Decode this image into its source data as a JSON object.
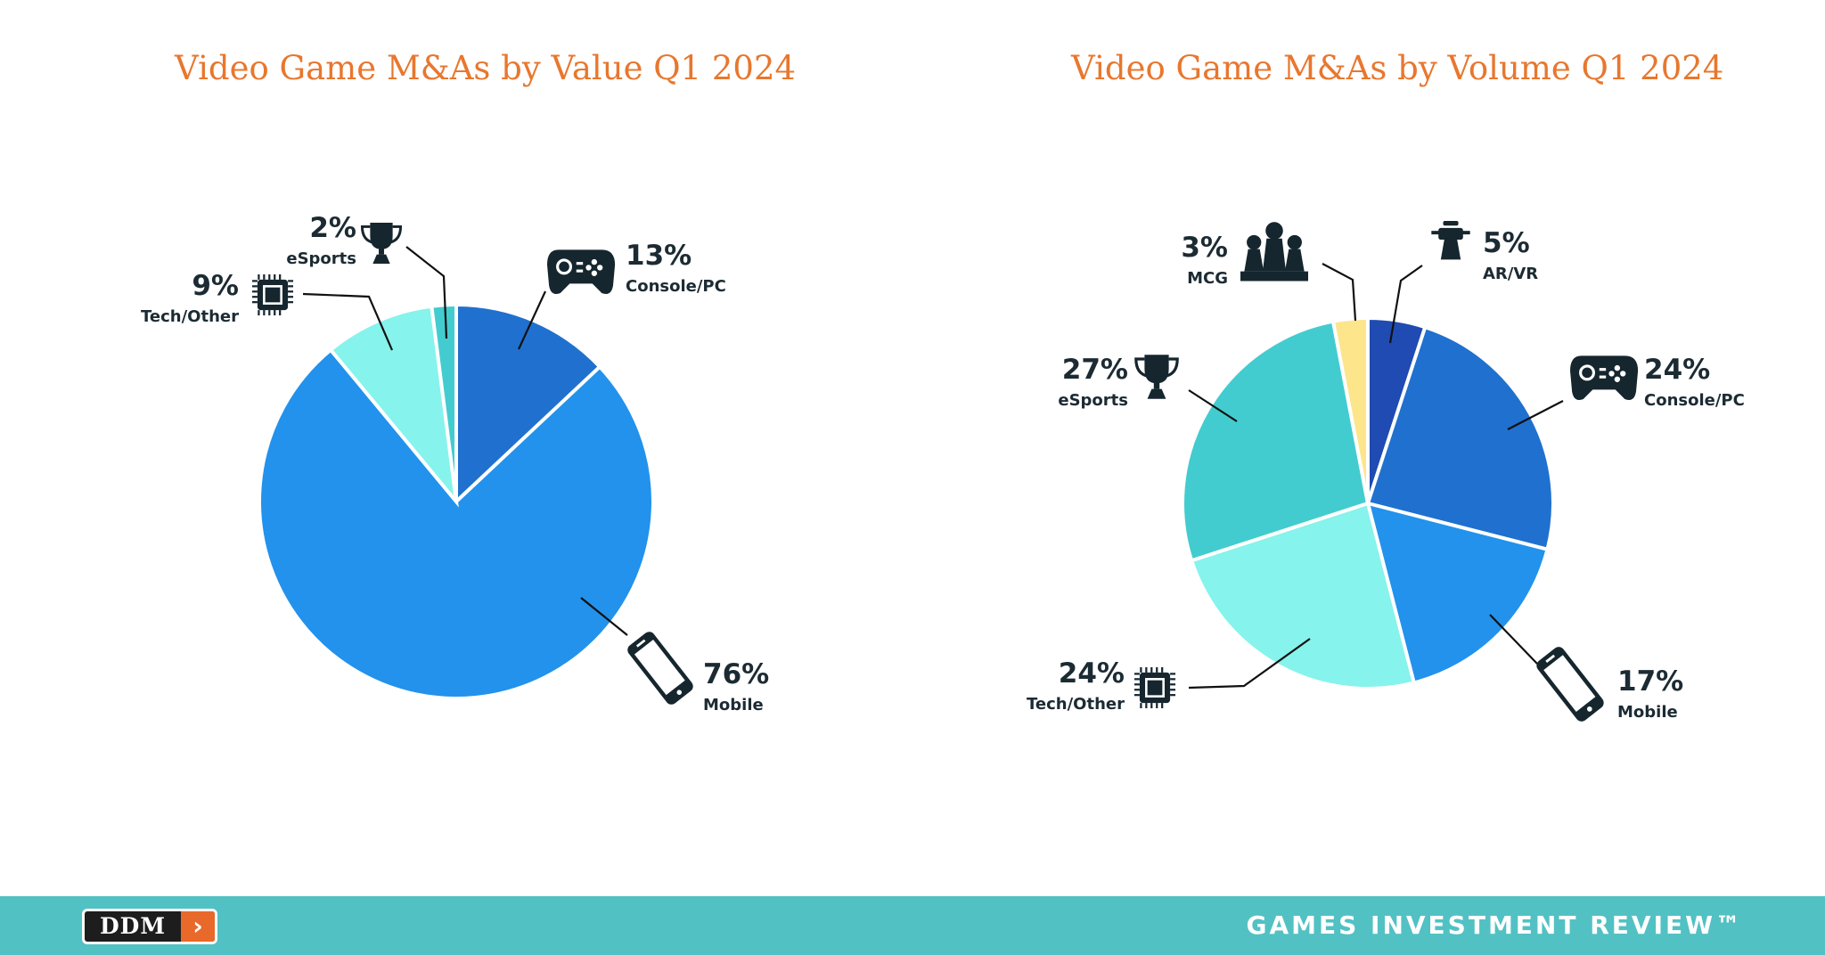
{
  "chart_data": [
    {
      "type": "pie",
      "title": "Video Game M&As by Value Q1 2024",
      "categories": [
        "Console/PC",
        "Mobile",
        "Tech/Other",
        "eSports"
      ],
      "values": [
        13,
        76,
        9,
        2
      ],
      "value_labels": [
        "13%",
        "76%",
        "9%",
        "2%"
      ],
      "colors": [
        "#2070cf",
        "#2292ec",
        "#86f3ec",
        "#43cccf"
      ]
    },
    {
      "type": "pie",
      "title": "Video Game M&As by Volume Q1 2024",
      "categories": [
        "AR/VR",
        "Console/PC",
        "Mobile",
        "Tech/Other",
        "eSports",
        "MCG"
      ],
      "values": [
        5,
        24,
        17,
        24,
        27,
        3
      ],
      "value_labels": [
        "5%",
        "24%",
        "17%",
        "24%",
        "27%",
        "3%"
      ],
      "colors": [
        "#1f4bb2",
        "#2070cf",
        "#2292ec",
        "#86f3ec",
        "#43cccf",
        "#fde58c"
      ]
    }
  ],
  "icons": {
    "Console/PC": "gamepad-icon",
    "Mobile": "smartphone-icon",
    "Tech/Other": "chip-icon",
    "eSports": "trophy-icon",
    "AR/VR": "vr-headset-icon",
    "MCG": "board-game-pieces-icon"
  },
  "footer": {
    "logo_text": "DDM",
    "logo_arrow": "›",
    "brand": "GAMES INVESTMENT REVIEW™"
  }
}
